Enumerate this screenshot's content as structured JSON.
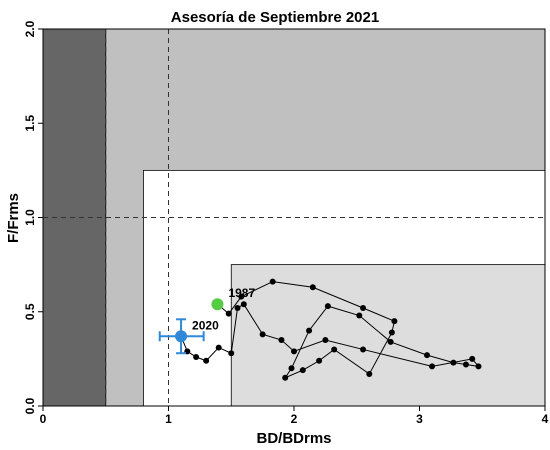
{
  "chart_data": {
    "type": "scatter",
    "title": "Asesoría de Septiembre 2021",
    "xlabel": "BD/BDrms",
    "ylabel": "F/Frms",
    "xlim": [
      0,
      4
    ],
    "ylim": [
      0,
      2
    ],
    "x_ticks": [
      "0",
      "1",
      "2",
      "3",
      "4"
    ],
    "y_ticks": [
      "0.0",
      "0.5",
      "1.0",
      "1.5",
      "2.0"
    ],
    "grid": false,
    "regions": [
      {
        "x": [
          0,
          0.5
        ],
        "y": [
          0,
          2
        ],
        "color": "#666666"
      },
      {
        "x": [
          0.5,
          4
        ],
        "y": [
          0,
          2
        ],
        "color": "#c0c0c0"
      },
      {
        "x": [
          0.8,
          4
        ],
        "y": [
          0,
          1.25
        ],
        "color": "#ffffff"
      },
      {
        "x": [
          1.5,
          4
        ],
        "y": [
          0,
          0.75
        ],
        "color": "#dddddd"
      }
    ],
    "reference_lines": [
      {
        "orientation": "vertical",
        "value": 0.5,
        "style": "dashed"
      },
      {
        "orientation": "vertical",
        "value": 1.0,
        "style": "dashed"
      },
      {
        "orientation": "horizontal",
        "value": 1.0,
        "style": "dashed"
      }
    ],
    "series": [
      {
        "x": [
          1.39,
          1.48,
          1.58,
          1.83,
          2.15,
          2.55,
          2.8,
          2.78,
          2.6,
          2.32,
          2.2,
          2.07,
          1.93,
          1.98,
          2.12,
          2.27,
          2.52,
          2.77,
          3.06,
          3.27,
          3.37,
          3.47,
          3.42,
          3.1,
          2.55,
          2.25,
          2.0,
          1.9,
          1.75,
          1.6,
          1.55,
          1.5,
          1.4,
          1.3,
          1.22,
          1.15,
          1.1
        ],
        "y": [
          0.54,
          0.49,
          0.58,
          0.66,
          0.63,
          0.52,
          0.45,
          0.39,
          0.17,
          0.3,
          0.24,
          0.19,
          0.15,
          0.2,
          0.4,
          0.53,
          0.48,
          0.34,
          0.27,
          0.23,
          0.22,
          0.21,
          0.25,
          0.21,
          0.3,
          0.35,
          0.29,
          0.35,
          0.38,
          0.54,
          0.52,
          0.28,
          0.31,
          0.24,
          0.26,
          0.29,
          0.37
        ],
        "color": "#000000",
        "marker": "circle"
      }
    ],
    "highlights": [
      {
        "label": "1987",
        "x": 1.39,
        "y": 0.54,
        "color": "#55cc44"
      },
      {
        "label": "2020",
        "x": 1.1,
        "y": 0.37,
        "color": "#2f88d8",
        "x_err": [
          0.93,
          1.28
        ],
        "y_err": [
          0.28,
          0.46
        ]
      }
    ]
  }
}
